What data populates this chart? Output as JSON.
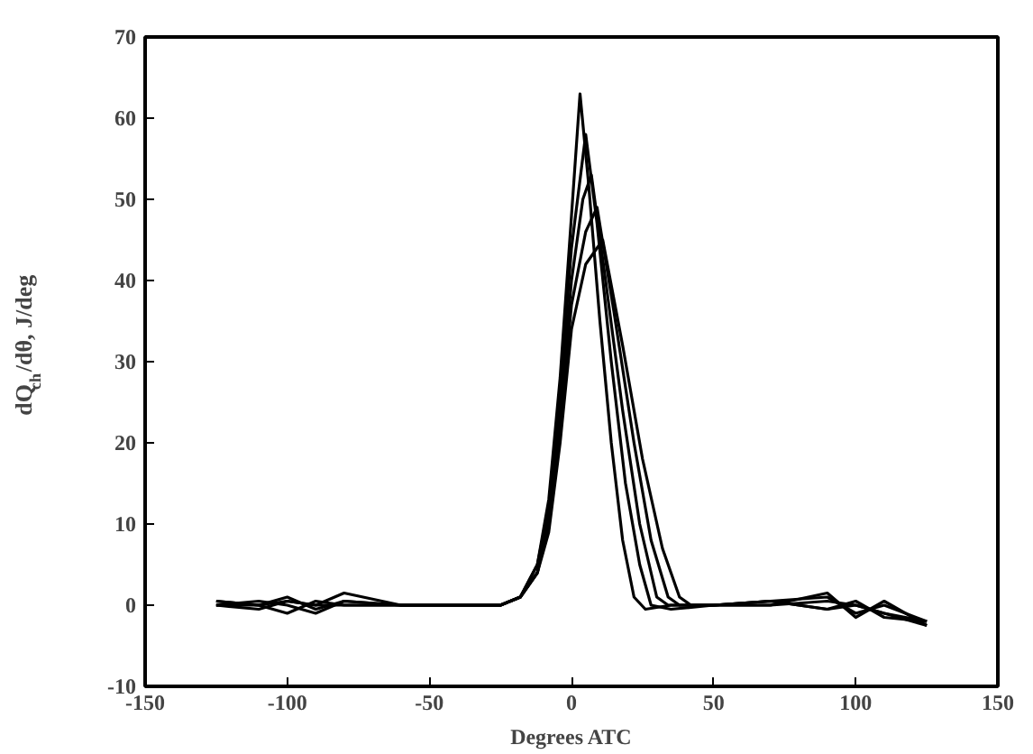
{
  "chart_data": {
    "type": "line",
    "xlabel": "Degrees ATC",
    "ylabel": "dQ$_{ch}$/dθ, J/deg",
    "xlim": [
      -150,
      150
    ],
    "xticks": [
      -150,
      -100,
      -50,
      0,
      50,
      100,
      150
    ],
    "ylim": [
      -10,
      70
    ],
    "yticks": [
      -10,
      0,
      10,
      20,
      30,
      40,
      50,
      60,
      70
    ],
    "grid": false,
    "marker": "none",
    "line_style": "solid",
    "series": [
      {
        "color": "#000000",
        "x": [
          -125,
          -110,
          -100,
          -90,
          -80,
          -60,
          -40,
          -25,
          -18,
          -12,
          -8,
          -4,
          0,
          3,
          6,
          10,
          14,
          18,
          22,
          26,
          35,
          50,
          70,
          90,
          100,
          110,
          125
        ],
        "values": [
          0.5,
          0,
          1,
          -0.5,
          0.5,
          0,
          0,
          0,
          1,
          5,
          13,
          28,
          48,
          63,
          52,
          35,
          20,
          8,
          1,
          -0.5,
          0,
          0,
          0.5,
          -0.5,
          0,
          -1,
          -2
        ]
      },
      {
        "color": "#000000",
        "x": [
          -125,
          -110,
          -100,
          -90,
          -80,
          -60,
          -40,
          -25,
          -18,
          -12,
          -8,
          -4,
          0,
          5,
          9,
          14,
          19,
          24,
          28,
          35,
          50,
          70,
          90,
          100,
          110,
          125
        ],
        "values": [
          0,
          -0.5,
          0.5,
          0,
          1.5,
          0,
          0,
          0,
          1,
          5,
          12,
          26,
          44,
          58,
          47,
          30,
          15,
          5,
          0,
          -0.5,
          0,
          0.5,
          1,
          -1,
          0,
          -2
        ]
      },
      {
        "color": "#000000",
        "x": [
          -125,
          -110,
          -100,
          -90,
          -80,
          -60,
          -40,
          -25,
          -18,
          -12,
          -8,
          -4,
          0,
          4,
          7,
          12,
          18,
          24,
          30,
          34,
          50,
          70,
          90,
          100,
          110,
          125
        ],
        "values": [
          0.5,
          0,
          -1,
          0.5,
          0,
          0,
          0,
          0,
          1,
          4,
          11,
          24,
          40,
          50,
          53,
          40,
          24,
          10,
          1,
          0,
          0,
          0,
          1.5,
          -1.5,
          0.5,
          -2.5
        ]
      },
      {
        "color": "#000000",
        "x": [
          -125,
          -110,
          -100,
          -90,
          -80,
          -60,
          -40,
          -25,
          -18,
          -12,
          -8,
          -4,
          0,
          5,
          9,
          15,
          22,
          28,
          34,
          38,
          50,
          70,
          90,
          100,
          110,
          125
        ],
        "values": [
          0,
          0.5,
          0,
          -1,
          0.5,
          0,
          0,
          0,
          1,
          4,
          10,
          22,
          37,
          46,
          49,
          36,
          20,
          8,
          1,
          0,
          0,
          0.5,
          -0.5,
          0.5,
          -1.5,
          -2
        ]
      },
      {
        "color": "#000000",
        "x": [
          -125,
          -110,
          -100,
          -90,
          -80,
          -60,
          -40,
          -25,
          -18,
          -12,
          -8,
          -4,
          0,
          5,
          11,
          18,
          25,
          32,
          38,
          42,
          50,
          70,
          90,
          100,
          110,
          125
        ],
        "values": [
          0,
          0,
          0.5,
          0,
          0,
          0,
          0,
          0,
          1,
          4,
          9,
          20,
          34,
          42,
          45,
          32,
          18,
          7,
          1,
          0,
          0,
          0,
          0.5,
          0,
          -1,
          -2.5
        ]
      }
    ]
  }
}
